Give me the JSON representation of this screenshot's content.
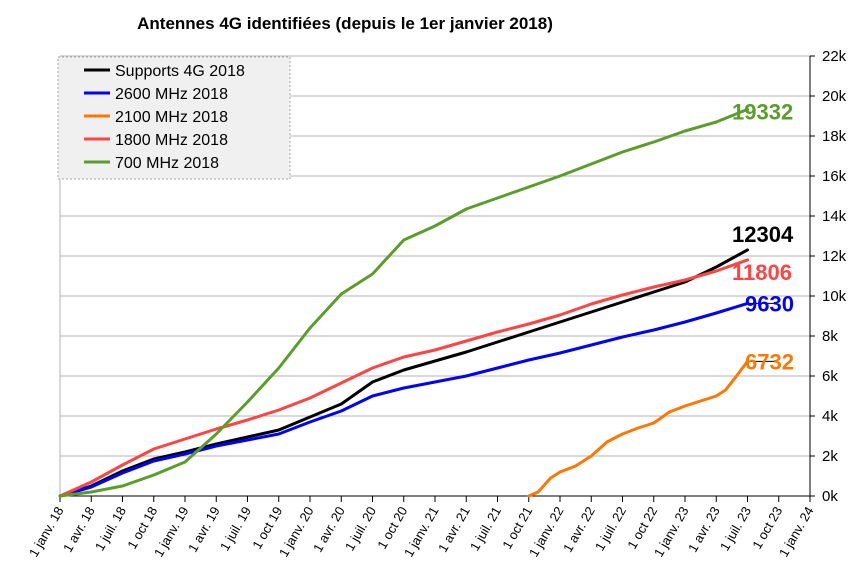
{
  "title": "Antennes 4G identifiées (depuis le 1er janvier 2018)",
  "chart_data": {
    "type": "line",
    "title": "Antennes 4G identifiées (depuis le 1er janvier 2018)",
    "xlabel": "",
    "ylabel": "",
    "x_ticks": [
      "1 janv. 18",
      "1 avr. 18",
      "1 juil. 18",
      "1 oct 18",
      "1 janv. 19",
      "1 avr. 19",
      "1 juil. 19",
      "1 oct 19",
      "1 janv. 20",
      "1 avr. 20",
      "1 juil. 20",
      "1 oct 20",
      "1 janv. 21",
      "1 avr. 21",
      "1 juil. 21",
      "1 oct 21",
      "1 janv. 22",
      "1 avr. 22",
      "1 juil. 22",
      "1 oct 22",
      "1 janv. 23",
      "1 avr. 23",
      "1 juil. 23",
      "1 oct 23",
      "1 janv. 24"
    ],
    "y_ticks": [
      "0k",
      "2k",
      "4k",
      "6k",
      "8k",
      "10k",
      "12k",
      "14k",
      "16k",
      "18k",
      "20k",
      "22k"
    ],
    "ylim": [
      0,
      22000
    ],
    "y_axis_side": "right",
    "grid": "horizontal",
    "legend_position": "top-left",
    "series": [
      {
        "name": "Supports 4G 2018",
        "color": "#000000",
        "end_label": "12304",
        "x": [
          0,
          1,
          2,
          3,
          4,
          5,
          6,
          7,
          8,
          9,
          10,
          11,
          12,
          13,
          14,
          15,
          16,
          17,
          18,
          19,
          20,
          21,
          22
        ],
        "y": [
          0,
          500,
          1250,
          1850,
          2200,
          2600,
          2950,
          3300,
          3950,
          4600,
          5700,
          6300,
          6750,
          7200,
          7700,
          8200,
          8700,
          9200,
          9700,
          10200,
          10700,
          11450,
          12304
        ]
      },
      {
        "name": "2600 MHz 2018",
        "color": "#0000ff",
        "end_label": "9630",
        "x": [
          0,
          1,
          2,
          3,
          4,
          5,
          6,
          7,
          8,
          9,
          10,
          11,
          12,
          13,
          14,
          15,
          16,
          17,
          18,
          19,
          20,
          21,
          22
        ],
        "y": [
          0,
          450,
          1150,
          1750,
          2100,
          2500,
          2800,
          3100,
          3700,
          4250,
          5000,
          5400,
          5700,
          6000,
          6400,
          6800,
          7150,
          7550,
          7950,
          8300,
          8700,
          9150,
          9630
        ]
      },
      {
        "name": "2100 MHz 2018",
        "color": "#ff7700",
        "end_label": "6732",
        "x": [
          15,
          15.3,
          15.7,
          16,
          16.5,
          17,
          17.5,
          18,
          18.5,
          19,
          19.5,
          20,
          20.5,
          21,
          21.3,
          21.6,
          22
        ],
        "y": [
          0,
          200,
          900,
          1200,
          1500,
          2000,
          2700,
          3100,
          3400,
          3650,
          4200,
          4500,
          4750,
          5000,
          5300,
          5900,
          6732
        ]
      },
      {
        "name": "1800 MHz 2018",
        "color": "#ff4444",
        "end_label": "11806",
        "x": [
          0,
          1,
          2,
          3,
          4,
          5,
          6,
          7,
          8,
          9,
          10,
          11,
          12,
          13,
          14,
          15,
          16,
          17,
          18,
          19,
          20,
          21,
          22
        ],
        "y": [
          0,
          700,
          1550,
          2350,
          2850,
          3350,
          3800,
          4300,
          4900,
          5650,
          6400,
          6950,
          7300,
          7750,
          8200,
          8600,
          9050,
          9600,
          10050,
          10450,
          10800,
          11250,
          11806
        ]
      },
      {
        "name": "700 MHz 2018",
        "color": "#5a9e2a",
        "end_label": "19332",
        "x": [
          0,
          1,
          2,
          3,
          4,
          5,
          6,
          7,
          8,
          9,
          10,
          11,
          12,
          13,
          14,
          15,
          16,
          17,
          18,
          19,
          20,
          21,
          22
        ],
        "y": [
          0,
          200,
          500,
          1050,
          1700,
          3100,
          4700,
          6400,
          8400,
          10100,
          11100,
          12800,
          13500,
          14350,
          14900,
          15450,
          16000,
          16600,
          17200,
          17700,
          18250,
          18700,
          19332
        ]
      }
    ]
  }
}
